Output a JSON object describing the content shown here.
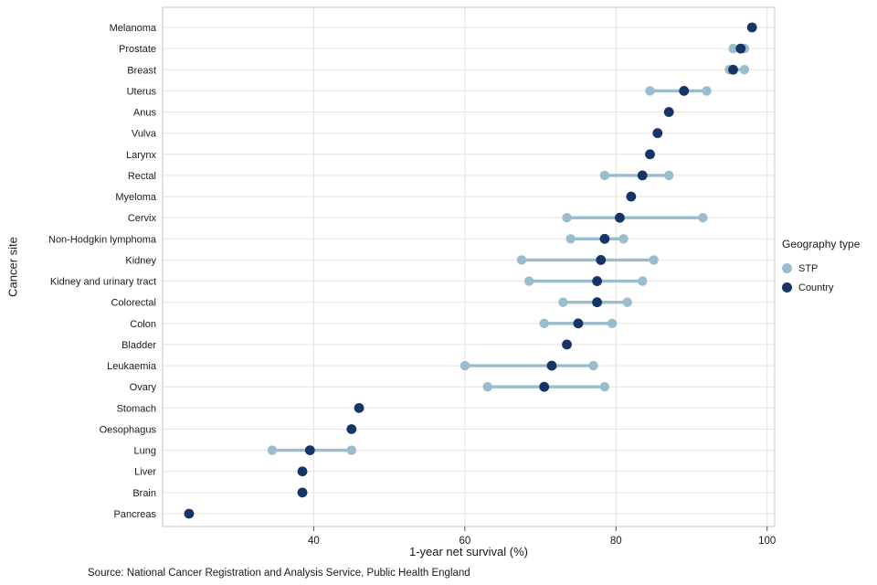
{
  "figure": {
    "x_axis_title": "1-year net survival (%)",
    "y_axis_title": "Cancer site",
    "source": "Source: National Cancer Registration and Analysis Service, Public Health England"
  },
  "legend": {
    "title": "Geography type",
    "items": [
      {
        "label": "STP",
        "color": "#99bcce"
      },
      {
        "label": "Country",
        "color": "#163567"
      }
    ]
  },
  "colors": {
    "stp": "#99bcce",
    "country": "#163567",
    "gridline": "#e8e3da",
    "panel_border": "#c8c4bc",
    "axis_text": "#1a1a1a"
  },
  "chart_data": {
    "type": "scatter",
    "subtype": "dumbbell-range-dot-plot",
    "title": "",
    "xlabel": "1-year net survival (%)",
    "ylabel": "Cancer site",
    "xlim": [
      20,
      101
    ],
    "x_ticks": [
      40,
      60,
      80,
      100
    ],
    "grid": "light horizontal line per category and vertical lines at major x ticks; thin panel border",
    "legend_title": "Geography type",
    "legend_position": "right",
    "categories": [
      "Melanoma",
      "Prostate",
      "Breast",
      "Uterus",
      "Anus",
      "Vulva",
      "Larynx",
      "Rectal",
      "Myeloma",
      "Cervix",
      "Non-Hodgkin lymphoma",
      "Kidney",
      "Kidney and urinary tract",
      "Colorectal",
      "Colon",
      "Bladder",
      "Leukaemia",
      "Ovary",
      "Stomach",
      "Oesophagus",
      "Lung",
      "Liver",
      "Brain",
      "Pancreas"
    ],
    "series": [
      {
        "name": "STP",
        "style": "range",
        "color": "#99bcce",
        "low": [
          null,
          95.5,
          95,
          84.5,
          null,
          null,
          null,
          78.5,
          null,
          73.5,
          74,
          67.5,
          68.5,
          73,
          70.5,
          null,
          60,
          63,
          null,
          null,
          34.5,
          null,
          null,
          null
        ],
        "high": [
          null,
          97,
          97,
          92,
          null,
          null,
          null,
          87,
          null,
          91.5,
          81,
          85,
          83.5,
          81.5,
          79.5,
          null,
          77,
          78.5,
          null,
          null,
          45,
          null,
          null,
          null
        ]
      },
      {
        "name": "Country",
        "style": "point",
        "color": "#163567",
        "values": [
          98,
          96.5,
          95.5,
          89,
          87,
          85.5,
          84.5,
          83.5,
          82,
          80.5,
          78.5,
          78,
          77.5,
          77.5,
          75,
          73.5,
          71.5,
          70.5,
          46,
          45,
          39.5,
          38.5,
          38.5,
          23.5
        ]
      }
    ]
  }
}
